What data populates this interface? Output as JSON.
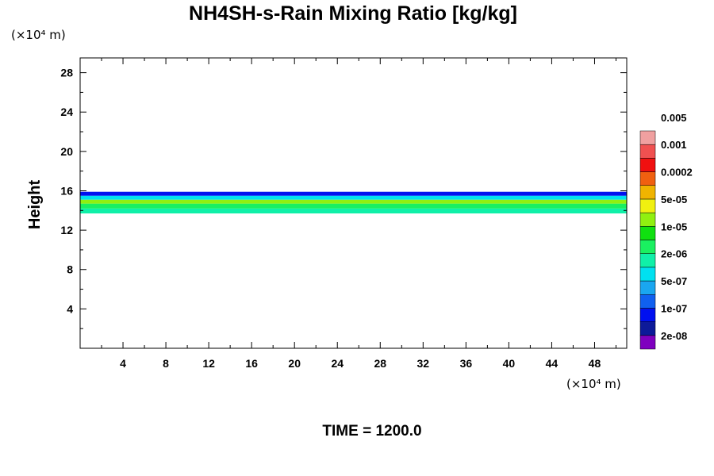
{
  "chart_data": {
    "type": "contour",
    "title": "NH4SH-s-Rain Mixing Ratio [kg/kg]",
    "ylabel": "Height",
    "x_unit": "(×10⁴ m)",
    "y_unit": "(×10⁴ m)",
    "xlim": [
      0,
      51
    ],
    "ylim": [
      0,
      29.5
    ],
    "x_ticks": [
      4,
      8,
      12,
      16,
      20,
      24,
      28,
      32,
      36,
      40,
      44,
      48
    ],
    "y_ticks": [
      4,
      8,
      12,
      16,
      20,
      24,
      28
    ],
    "x_tick_labels": [
      "4",
      "8",
      "12",
      "16",
      "20",
      "24",
      "28",
      "32",
      "36",
      "40",
      "44",
      "48"
    ],
    "y_tick_labels": [
      "4",
      "8",
      "12",
      "16",
      "20",
      "24",
      "28"
    ],
    "time_label": "TIME = 1200.0",
    "legend": {
      "colors": [
        "#7f00bf",
        "#0d1a99",
        "#0010f0",
        "#1060f0",
        "#1aa6f0",
        "#00e1f0",
        "#10f0a8",
        "#1af060",
        "#10e010",
        "#90f010",
        "#f0f010",
        "#f0b400",
        "#f06010",
        "#f01010",
        "#f05050",
        "#f0a0a0"
      ],
      "labels": [
        "2e-08",
        "1e-07",
        "5e-07",
        "2e-06",
        "1e-05",
        "5e-05",
        "0.0002",
        "0.001",
        "0.005"
      ]
    },
    "field_bands": [
      {
        "y_range": [
          13.7,
          14.2
        ],
        "color": "#10f0a8"
      },
      {
        "y_range": [
          14.2,
          14.7
        ],
        "color": "#1af060"
      },
      {
        "y_range": [
          14.7,
          15.1
        ],
        "color": "#90f010"
      },
      {
        "y_range": [
          15.1,
          15.5
        ],
        "color": "#00e1f0"
      },
      {
        "y_range": [
          15.5,
          15.9
        ],
        "color": "#0010f0"
      }
    ]
  }
}
